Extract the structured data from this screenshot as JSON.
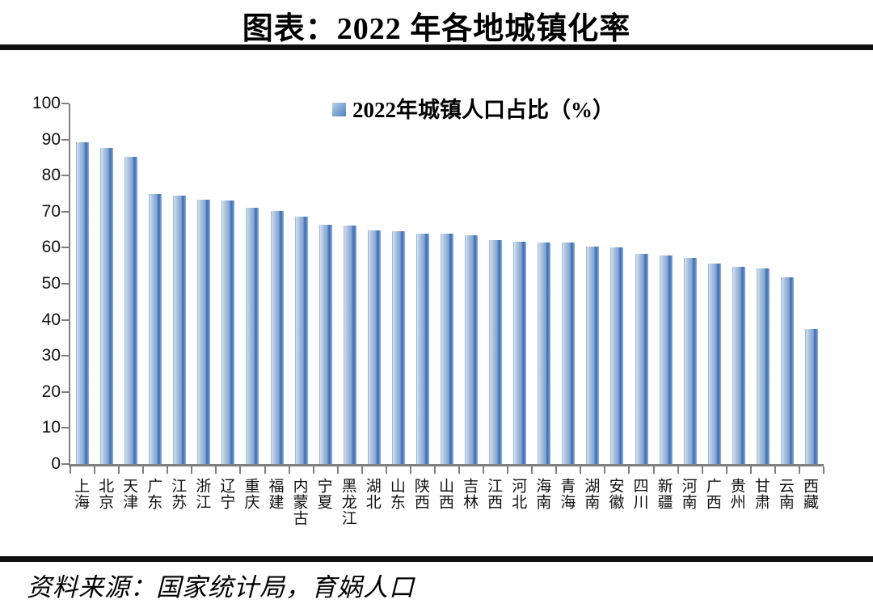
{
  "title": "图表：2022 年各地城镇化率",
  "legend": {
    "label": "2022年城镇人口占比（%）",
    "swatch_color": "#6d97c9"
  },
  "source": "资料来源：国家统计局，育娲人口",
  "colors": {
    "bar_main": "#6f9bd1",
    "bar_dark_stripe": "#3f6fb3",
    "bar_highlight": "#d4e1f0",
    "axis": "#7f7f7f",
    "rule": "#0e0e0e"
  },
  "chart_data": {
    "type": "bar",
    "title": "2022年城镇人口占比（%）",
    "xlabel": "",
    "ylabel": "",
    "ylim": [
      0,
      100
    ],
    "ytick_step": 10,
    "grid": false,
    "legend_position": "top-center",
    "categories": [
      "上海",
      "北京",
      "天津",
      "广东",
      "江苏",
      "浙江",
      "辽宁",
      "重庆",
      "福建",
      "内蒙古",
      "宁夏",
      "黑龙江",
      "湖北",
      "山东",
      "陕西",
      "山西",
      "吉林",
      "江西",
      "河北",
      "海南",
      "青海",
      "湖南",
      "安徽",
      "四川",
      "新疆",
      "河南",
      "广西",
      "贵州",
      "甘肃",
      "云南",
      "西藏"
    ],
    "values": [
      89.3,
      87.6,
      85.1,
      74.8,
      74.4,
      73.4,
      73.0,
      71.0,
      70.1,
      68.6,
      66.3,
      66.1,
      64.7,
      64.5,
      64.0,
      64.0,
      63.4,
      62.1,
      61.7,
      61.5,
      61.4,
      60.3,
      60.2,
      58.4,
      57.9,
      57.1,
      55.7,
      54.8,
      54.2,
      51.7,
      37.4
    ]
  }
}
